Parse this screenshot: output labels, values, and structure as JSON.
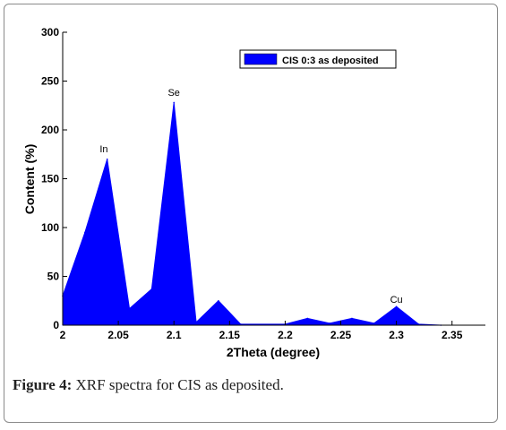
{
  "chart_data": {
    "type": "area",
    "x": [
      2.0,
      2.02,
      2.04,
      2.06,
      2.08,
      2.1,
      2.12,
      2.14,
      2.16,
      2.2,
      2.22,
      2.24,
      2.26,
      2.28,
      2.3,
      2.32,
      2.34
    ],
    "y": [
      30,
      95,
      170,
      17,
      37,
      228,
      3,
      25,
      1,
      1,
      7,
      2,
      7,
      2,
      19,
      1,
      0
    ],
    "series": [
      {
        "name": "CIS 0:3 as deposited",
        "color": "#0000ff"
      }
    ],
    "xlabel": "2Theta (degree)",
    "ylabel": "Content (%)",
    "xlim": [
      2.0,
      2.38
    ],
    "ylim": [
      0,
      300
    ],
    "xticks": [
      2,
      2.05,
      2.1,
      2.15,
      2.2,
      2.25,
      2.3,
      2.35
    ],
    "xtick_labels": [
      "2",
      "2.05",
      "2.1",
      "2.15",
      "2.2",
      "2.25",
      "2.3",
      "2.35"
    ],
    "yticks": [
      0,
      50,
      100,
      150,
      200,
      250,
      300
    ],
    "ytick_labels": [
      "0",
      "50",
      "100",
      "150",
      "200",
      "250",
      "300"
    ],
    "annotations": [
      {
        "text": "In",
        "x": 2.037,
        "y": 177
      },
      {
        "text": "Se",
        "x": 2.1,
        "y": 235
      },
      {
        "text": "Cu",
        "x": 2.3,
        "y": 23
      }
    ],
    "legend_position": "top-right",
    "grid": false
  },
  "caption": {
    "label": "Figure 4:",
    "text": " XRF spectra for CIS as deposited."
  }
}
